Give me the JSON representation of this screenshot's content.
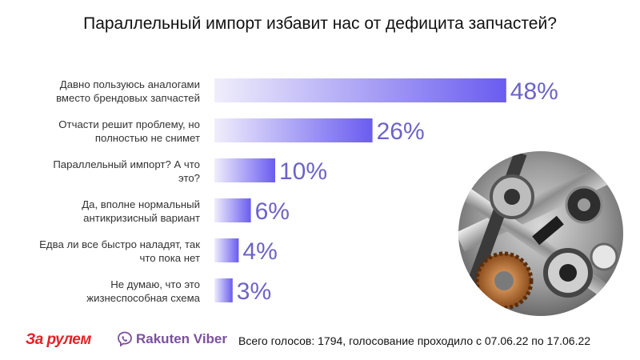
{
  "title": "Параллельный импорт избавит нас от дефицита запчастей?",
  "footer": {
    "note": "Всего голосов: 1794, голосование проходило с 07.06.22 по 17.06.22",
    "logo_zr": "За рулем",
    "logo_viber": "Rakuten Viber"
  },
  "colors": {
    "bar_light": "#f0eefb",
    "bar_dark": "#6a5cf0",
    "value_text": "#6c63c8"
  },
  "chart_data": {
    "type": "bar",
    "orientation": "horizontal",
    "title": "Параллельный импорт избавит нас от дефицита запчастей?",
    "categories": [
      [
        "Давно пользуюсь аналогами",
        "вместо брендовых запчастей"
      ],
      [
        "Отчасти решит проблему, но",
        "полностью не снимет"
      ],
      [
        "Параллельный импорт? А что",
        "это?"
      ],
      [
        "Да, вполне нормальный",
        "антикризисный вариант"
      ],
      [
        "Едва ли все быстро наладят, так",
        "что пока нет"
      ],
      [
        "Не думаю, что это",
        "жизнеспособная схема"
      ]
    ],
    "values": [
      48,
      26,
      10,
      6,
      4,
      3
    ],
    "value_labels": [
      "48%",
      "26%",
      "10%",
      "6%",
      "4%",
      "3%"
    ],
    "unit": "%",
    "grid": false,
    "legend": "none"
  }
}
